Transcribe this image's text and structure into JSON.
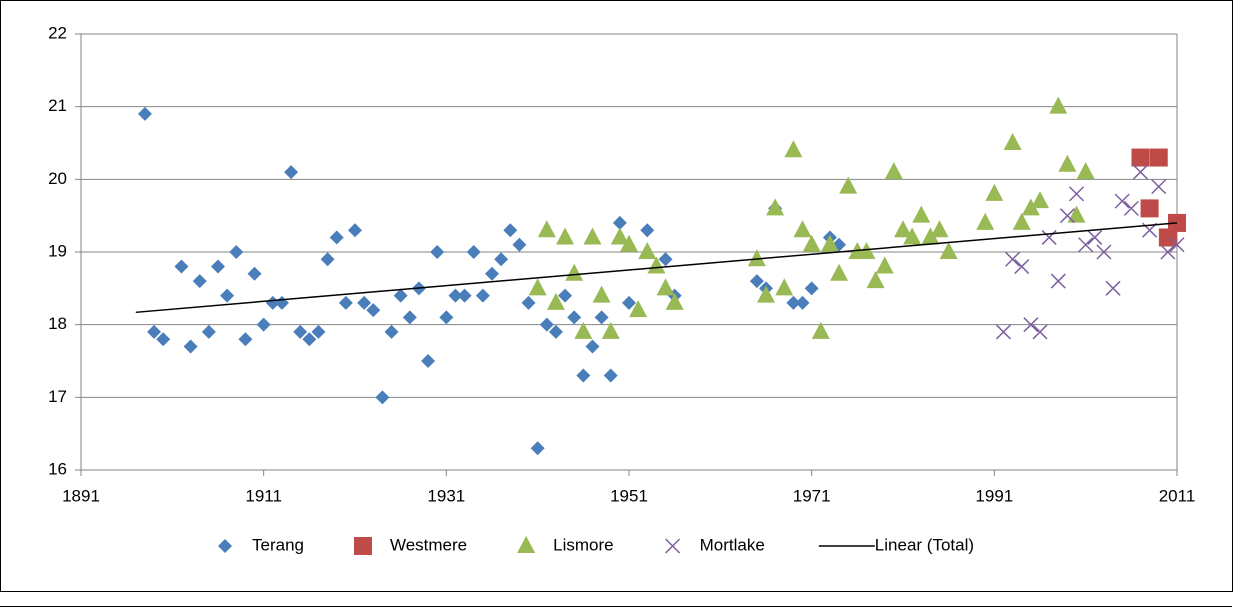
{
  "chart_data": {
    "type": "scatter",
    "xlim": [
      1891,
      2011
    ],
    "xticks": [
      1891,
      1911,
      1931,
      1951,
      1971,
      1991,
      2011
    ],
    "ylim": [
      16,
      22
    ],
    "yticks": [
      16,
      17,
      18,
      19,
      20,
      21,
      22
    ],
    "grid": true,
    "legend": "bottom",
    "series": [
      {
        "name": "Terang",
        "color": "#4a7ebb",
        "marker": "diamond",
        "x": [
          1898,
          1899,
          1900,
          1902,
          1903,
          1904,
          1905,
          1906,
          1907,
          1908,
          1909,
          1910,
          1911,
          1912,
          1913,
          1914,
          1915,
          1916,
          1917,
          1918,
          1919,
          1920,
          1921,
          1922,
          1923,
          1924,
          1925,
          1926,
          1927,
          1928,
          1929,
          1930,
          1931,
          1932,
          1933,
          1934,
          1935,
          1936,
          1937,
          1938,
          1939,
          1940,
          1941,
          1942,
          1943,
          1944,
          1945,
          1946,
          1947,
          1948,
          1949,
          1950,
          1951,
          1953,
          1955,
          1956,
          1965,
          1966,
          1967,
          1969,
          1970,
          1971,
          1973,
          1974
        ],
        "values": [
          20.9,
          17.9,
          17.8,
          18.8,
          17.7,
          18.6,
          17.9,
          18.8,
          18.4,
          19.0,
          17.8,
          18.7,
          18.0,
          18.3,
          18.3,
          20.1,
          17.9,
          17.8,
          17.9,
          18.9,
          19.2,
          18.3,
          19.3,
          18.3,
          18.2,
          17.0,
          17.9,
          18.4,
          18.1,
          18.5,
          17.5,
          19.0,
          18.1,
          18.4,
          18.4,
          19.0,
          18.4,
          18.7,
          18.9,
          19.3,
          19.1,
          18.3,
          16.3,
          18.0,
          17.9,
          18.4,
          18.1,
          17.3,
          17.7,
          18.1,
          17.3,
          19.4,
          18.3,
          19.3,
          18.9,
          18.4,
          18.6,
          18.5,
          19.6,
          18.3,
          18.3,
          18.5,
          19.2,
          19.1
        ]
      },
      {
        "name": "Westmere",
        "color": "#be4b48",
        "marker": "square",
        "x": [
          2007,
          2008,
          2009,
          2010,
          2011
        ],
        "values": [
          20.3,
          19.6,
          20.3,
          19.2,
          19.4
        ]
      },
      {
        "name": "Lismore",
        "color": "#98b954",
        "marker": "triangle",
        "x": [
          1941,
          1942,
          1943,
          1944,
          1945,
          1946,
          1947,
          1948,
          1949,
          1950,
          1951,
          1952,
          1953,
          1954,
          1955,
          1956,
          1965,
          1966,
          1967,
          1968,
          1969,
          1970,
          1971,
          1972,
          1973,
          1974,
          1975,
          1976,
          1977,
          1978,
          1979,
          1980,
          1981,
          1982,
          1983,
          1984,
          1985,
          1986,
          1990,
          1991,
          1993,
          1994,
          1995,
          1996,
          1998,
          1999,
          2000,
          2001
        ],
        "values": [
          18.5,
          19.3,
          18.3,
          19.2,
          18.7,
          17.9,
          19.2,
          18.4,
          17.9,
          19.2,
          19.1,
          18.2,
          19.0,
          18.8,
          18.5,
          18.3,
          18.9,
          18.4,
          19.6,
          18.5,
          20.4,
          19.3,
          19.1,
          17.9,
          19.1,
          18.7,
          19.9,
          19.0,
          19.0,
          18.6,
          18.8,
          20.1,
          19.3,
          19.2,
          19.5,
          19.2,
          19.3,
          19.0,
          19.4,
          19.8,
          20.5,
          19.4,
          19.6,
          19.7,
          21.0,
          20.2,
          19.5,
          20.1
        ]
      },
      {
        "name": "Mortlake",
        "color": "#7d60a0",
        "marker": "x",
        "x": [
          1992,
          1993,
          1994,
          1995,
          1996,
          1997,
          1998,
          1999,
          2000,
          2001,
          2002,
          2003,
          2004,
          2005,
          2006,
          2007,
          2008,
          2009,
          2010,
          2011
        ],
        "values": [
          17.9,
          18.9,
          18.8,
          18.0,
          17.9,
          19.2,
          18.6,
          19.5,
          19.8,
          19.1,
          19.2,
          19.0,
          18.5,
          19.7,
          19.6,
          20.1,
          19.3,
          19.9,
          19.0,
          19.1
        ]
      },
      {
        "name": "Linear (Total)",
        "color": "#000000",
        "marker": "line",
        "x": [
          1897,
          2011
        ],
        "values": [
          18.17,
          19.4
        ]
      }
    ]
  }
}
